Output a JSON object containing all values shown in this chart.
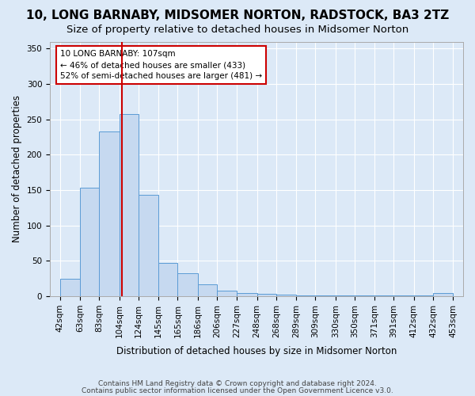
{
  "title": "10, LONG BARNABY, MIDSOMER NORTON, RADSTOCK, BA3 2TZ",
  "subtitle": "Size of property relative to detached houses in Midsomer Norton",
  "xlabel": "Distribution of detached houses by size in Midsomer Norton",
  "ylabel": "Number of detached properties",
  "footnote1": "Contains HM Land Registry data © Crown copyright and database right 2024.",
  "footnote2": "Contains public sector information licensed under the Open Government Licence v3.0.",
  "bin_edges": [
    42,
    63,
    83,
    104,
    124,
    145,
    165,
    186,
    206,
    227,
    248,
    268,
    289,
    309,
    330,
    350,
    371,
    391,
    412,
    432,
    453
  ],
  "bar_values": [
    25,
    153,
    233,
    258,
    143,
    47,
    33,
    17,
    8,
    5,
    3,
    2,
    1,
    1,
    1,
    1,
    1,
    1,
    1,
    5
  ],
  "bar_color": "#c6d9f0",
  "bar_edge_color": "#5b9bd5",
  "property_sqm": 107,
  "property_bin_index": 3,
  "vline_color": "#cc0000",
  "annotation_title": "10 LONG BARNABY: 107sqm",
  "annotation_line2": "← 46% of detached houses are smaller (433)",
  "annotation_line3": "52% of semi-detached houses are larger (481) →",
  "annotation_box_color": "#cc0000",
  "annotation_bg": "#ffffff",
  "ylim": [
    0,
    360
  ],
  "yticks": [
    0,
    50,
    100,
    150,
    200,
    250,
    300,
    350
  ],
  "background_color": "#dce9f7",
  "plot_bg_color": "#dce9f7",
  "title_fontsize": 11,
  "subtitle_fontsize": 9.5,
  "tick_fontsize": 7.5,
  "axis_label_fontsize": 8.5,
  "footnote_fontsize": 6.5
}
